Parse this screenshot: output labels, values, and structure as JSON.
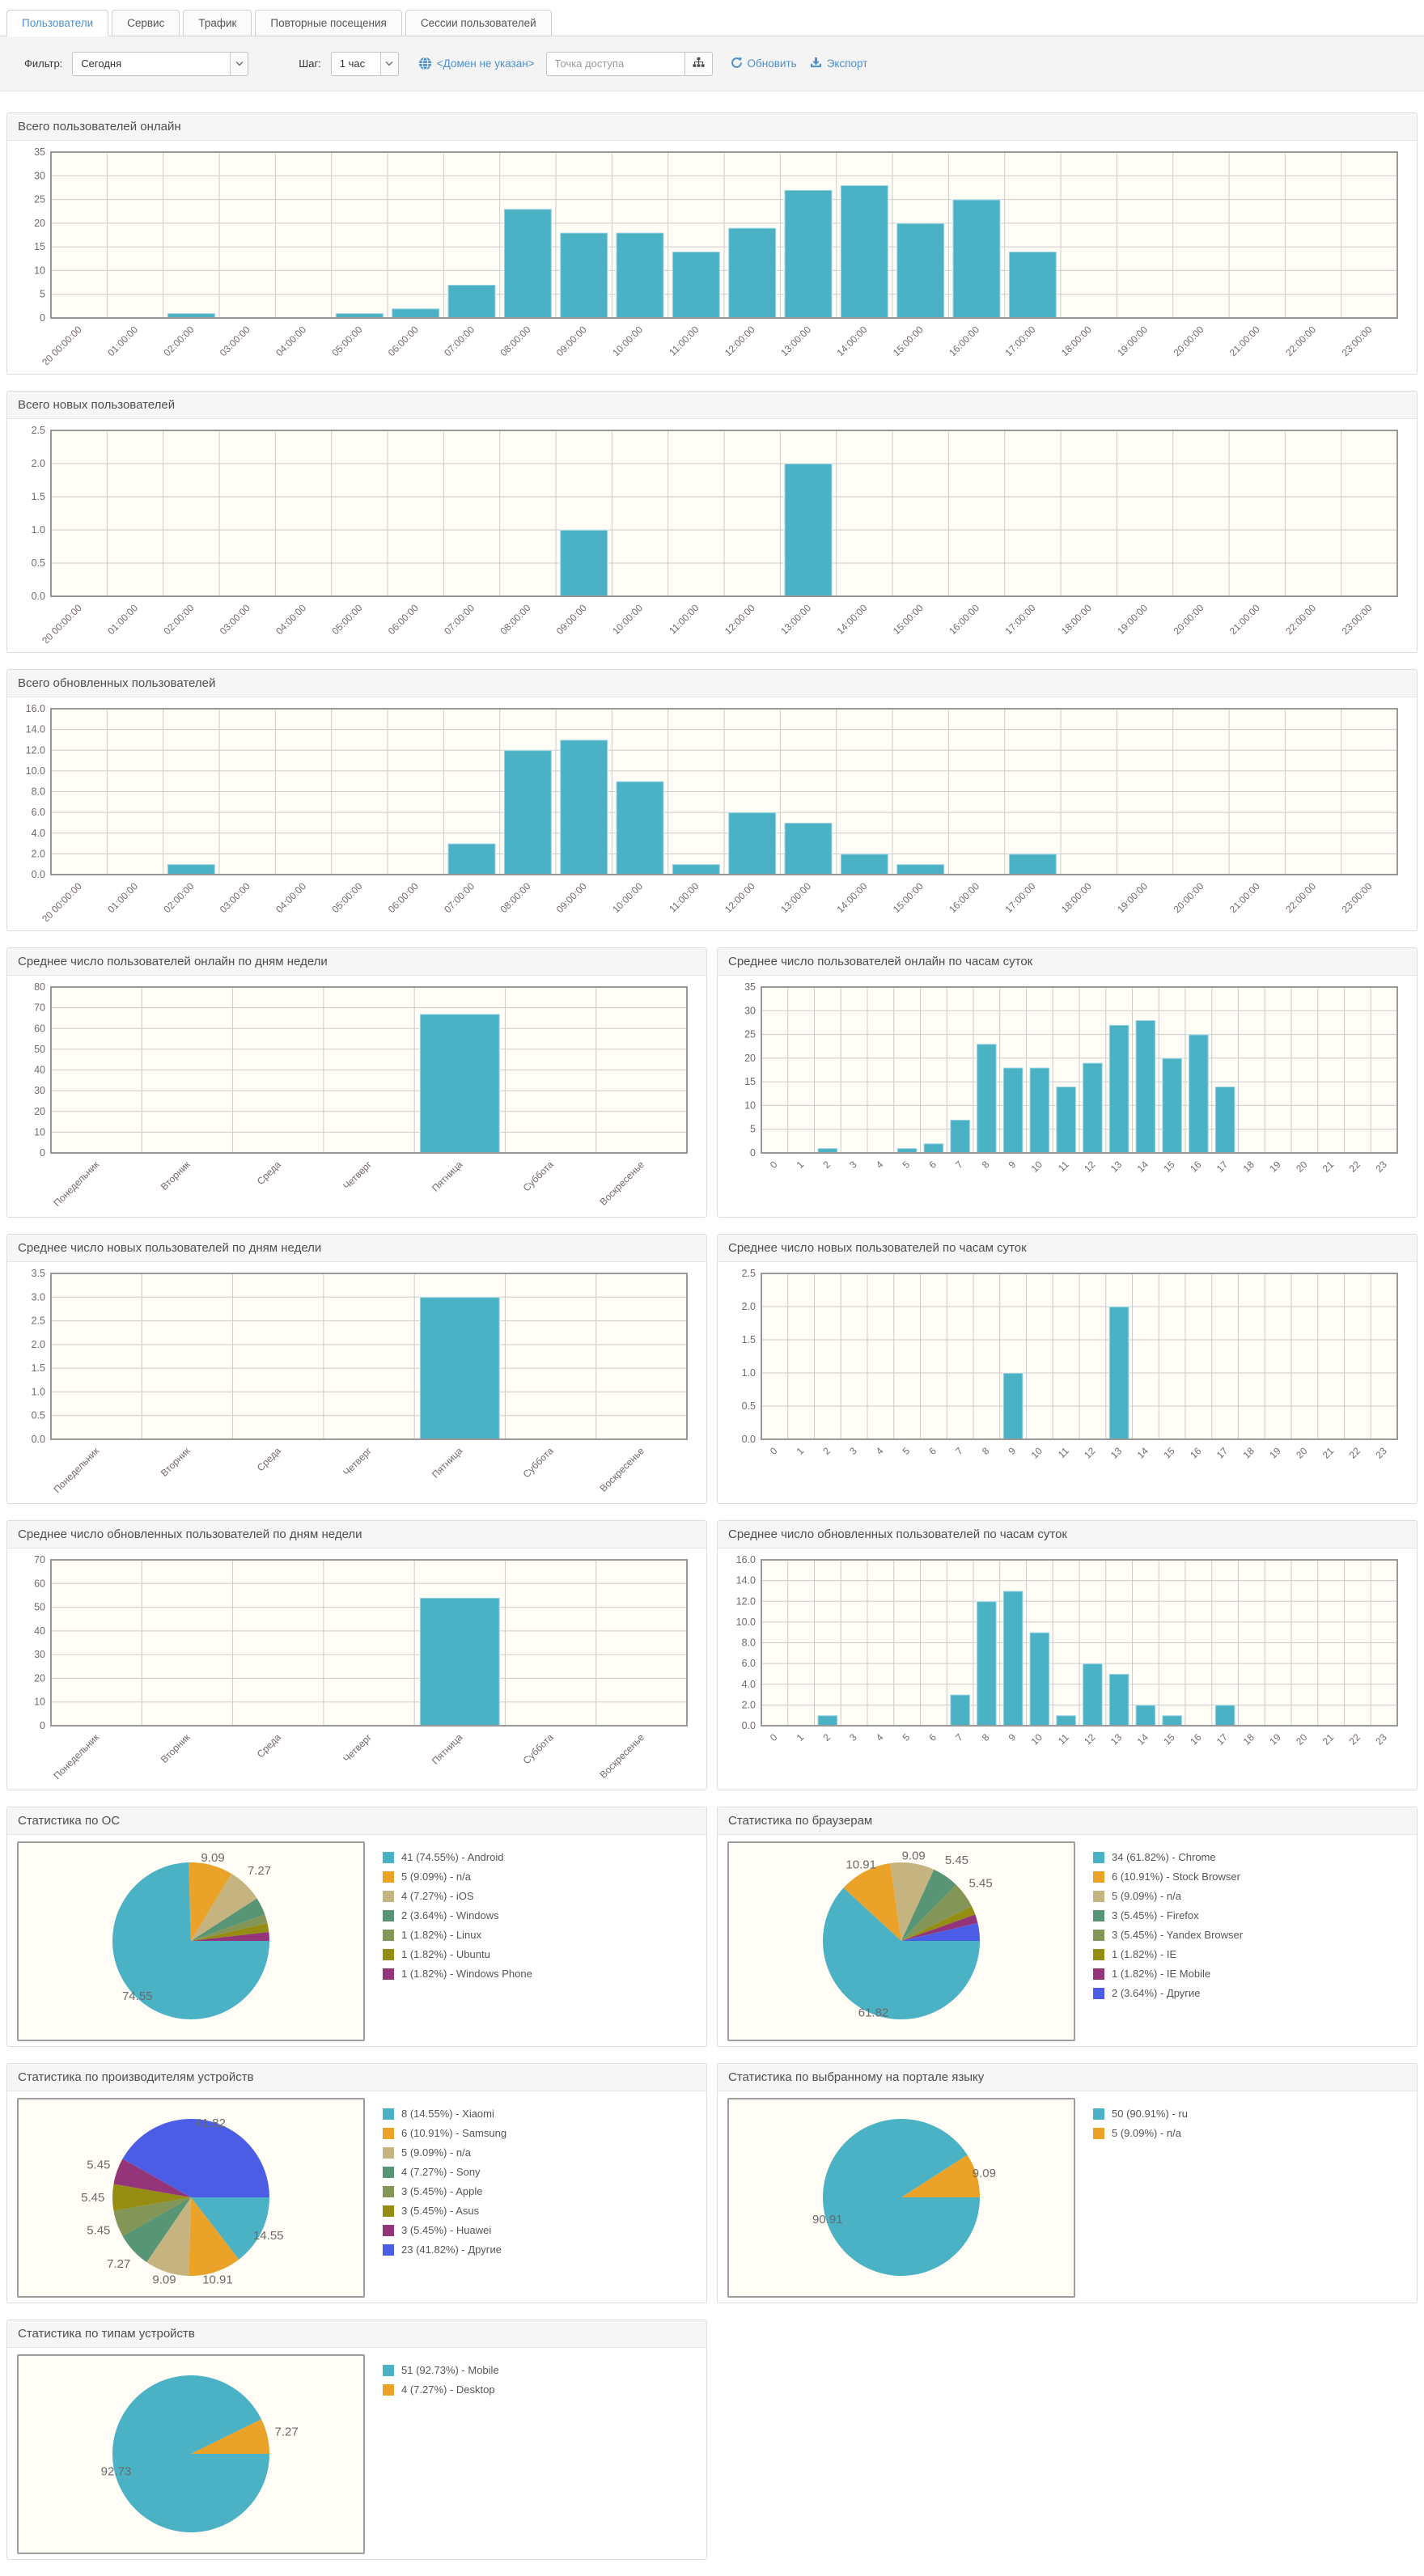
{
  "tabs": [
    {
      "name": "tab-users",
      "label": "Пользователи",
      "active": true
    },
    {
      "name": "tab-service",
      "label": "Сервис",
      "active": false
    },
    {
      "name": "tab-traffic",
      "label": "Трафик",
      "active": false
    },
    {
      "name": "tab-repeat-visits",
      "label": "Повторные посещения",
      "active": false
    },
    {
      "name": "tab-user-sessions",
      "label": "Сессии пользователей",
      "active": false
    }
  ],
  "toolbar": {
    "filter_label": "Фильтр:",
    "filter_value": "Сегодня",
    "step_label": "Шаг:",
    "step_value": "1 час",
    "domain_link": "<Домен не указан>",
    "access_point_placeholder": "Точка доступа",
    "refresh_label": "Обновить",
    "export_label": "Экспорт"
  },
  "colors": {
    "accent_link": "#4d90cd",
    "series_bar": "#4bb2c5",
    "bar_edge": "rgba(255,255,255,0.45)",
    "plot_background": "#fffdf6",
    "grid_line": "#cccccc",
    "grid_border": "#999999",
    "tick_text": "#756868",
    "pie_label_text": "#6a6a6a",
    "pie_palette": [
      "#4bb2c5",
      "#eaa228",
      "#c5b47f",
      "#579575",
      "#839557",
      "#958c12",
      "#953579",
      "#4b5de4"
    ]
  },
  "axis_labels": {
    "datetime": [
      "-10-20 00:00:00",
      "01:00:00",
      "02:00:00",
      "03:00:00",
      "04:00:00",
      "05:00:00",
      "06:00:00",
      "07:00:00",
      "08:00:00",
      "09:00:00",
      "10:00:00",
      "11:00:00",
      "12:00:00",
      "13:00:00",
      "14:00:00",
      "15:00:00",
      "16:00:00",
      "17:00:00",
      "18:00:00",
      "19:00:00",
      "20:00:00",
      "21:00:00",
      "22:00:00",
      "23:00:00"
    ],
    "hours": [
      "0",
      "1",
      "2",
      "3",
      "4",
      "5",
      "6",
      "7",
      "8",
      "9",
      "10",
      "11",
      "12",
      "13",
      "14",
      "15",
      "16",
      "17",
      "18",
      "19",
      "20",
      "21",
      "22",
      "23"
    ],
    "weekdays": [
      "Понедельник",
      "Вторник",
      "Среда",
      "Четверг",
      "Пятница",
      "Суббота",
      "Воскресенье"
    ]
  },
  "chart_data": [
    {
      "id": "total-online",
      "type": "bar",
      "layout": "full",
      "title": "Всего пользователей онлайн",
      "x_axis": "datetime",
      "ylim": [
        0,
        35
      ],
      "ystep": 5,
      "ydecimals": 0,
      "grid": true,
      "legend": "none",
      "values": [
        0,
        0,
        1,
        0,
        0,
        1,
        2,
        7,
        23,
        18,
        18,
        14,
        19,
        27,
        28,
        20,
        25,
        14,
        0,
        0,
        0,
        0,
        0,
        0
      ]
    },
    {
      "id": "total-new",
      "type": "bar",
      "layout": "full",
      "title": "Всего новых пользователей",
      "x_axis": "datetime",
      "ylim": [
        0,
        2.5
      ],
      "ystep": 0.5,
      "ydecimals": 1,
      "grid": true,
      "legend": "none",
      "values": [
        0,
        0,
        0,
        0,
        0,
        0,
        0,
        0,
        0,
        1,
        0,
        0,
        0,
        2,
        0,
        0,
        0,
        0,
        0,
        0,
        0,
        0,
        0,
        0
      ]
    },
    {
      "id": "total-updated",
      "type": "bar",
      "layout": "full",
      "title": "Всего обновленных пользователей",
      "x_axis": "datetime",
      "ylim": [
        0,
        16
      ],
      "ystep": 2,
      "ydecimals": 1,
      "grid": true,
      "legend": "none",
      "values": [
        0,
        0,
        1,
        0,
        0,
        0,
        0,
        3,
        12,
        13,
        9,
        1,
        6,
        5,
        2,
        1,
        0,
        2,
        0,
        0,
        0,
        0,
        0,
        0
      ]
    },
    {
      "id": "avg-online-weekday",
      "type": "bar",
      "layout": "half",
      "title": "Среднее число пользователей онлайн по дням недели",
      "x_axis": "weekdays",
      "ylim": [
        0,
        80
      ],
      "ystep": 10,
      "ydecimals": 0,
      "grid": true,
      "legend": "none",
      "values": [
        0,
        0,
        0,
        0,
        67,
        0,
        0
      ]
    },
    {
      "id": "avg-online-hour",
      "type": "bar",
      "layout": "half",
      "title": "Среднее число пользователей онлайн по часам суток",
      "x_axis": "hours",
      "ylim": [
        0,
        35
      ],
      "ystep": 5,
      "ydecimals": 0,
      "grid": true,
      "legend": "none",
      "values": [
        0,
        0,
        1,
        0,
        0,
        1,
        2,
        7,
        23,
        18,
        18,
        14,
        19,
        27,
        28,
        20,
        25,
        14,
        0,
        0,
        0,
        0,
        0,
        0
      ]
    },
    {
      "id": "avg-new-weekday",
      "type": "bar",
      "layout": "half",
      "title": "Среднее число новых пользователей по дням недели",
      "x_axis": "weekdays",
      "ylim": [
        0,
        3.5
      ],
      "ystep": 0.5,
      "ydecimals": 1,
      "grid": true,
      "legend": "none",
      "values": [
        0,
        0,
        0,
        0,
        3,
        0,
        0
      ]
    },
    {
      "id": "avg-new-hour",
      "type": "bar",
      "layout": "half",
      "title": "Среднее число новых пользователей по часам суток",
      "x_axis": "hours",
      "ylim": [
        0,
        2.5
      ],
      "ystep": 0.5,
      "ydecimals": 1,
      "grid": true,
      "legend": "none",
      "values": [
        0,
        0,
        0,
        0,
        0,
        0,
        0,
        0,
        0,
        1,
        0,
        0,
        0,
        2,
        0,
        0,
        0,
        0,
        0,
        0,
        0,
        0,
        0,
        0
      ]
    },
    {
      "id": "avg-updated-weekday",
      "type": "bar",
      "layout": "half",
      "title": "Среднее число обновленных пользователей по дням недели",
      "x_axis": "weekdays",
      "ylim": [
        0,
        70
      ],
      "ystep": 10,
      "ydecimals": 0,
      "grid": true,
      "legend": "none",
      "values": [
        0,
        0,
        0,
        0,
        54,
        0,
        0
      ]
    },
    {
      "id": "avg-updated-hour",
      "type": "bar",
      "layout": "half",
      "title": "Среднее число обновленных пользователей по часам суток",
      "x_axis": "hours",
      "ylim": [
        0,
        16
      ],
      "ystep": 2,
      "ydecimals": 1,
      "grid": true,
      "legend": "none",
      "values": [
        0,
        0,
        1,
        0,
        0,
        0,
        0,
        3,
        12,
        13,
        9,
        1,
        6,
        5,
        2,
        1,
        0,
        2,
        0,
        0,
        0,
        0,
        0,
        0
      ]
    },
    {
      "id": "os-stats",
      "type": "pie",
      "layout": "half",
      "title": "Статистика по ОС",
      "legend": "right",
      "slices": [
        {
          "value": 41,
          "pct": 74.55,
          "slice_label": "74.55",
          "legend_label": "41 (74.55%) - Android"
        },
        {
          "value": 5,
          "pct": 9.09,
          "slice_label": "9.09",
          "legend_label": "5 (9.09%) - n/a"
        },
        {
          "value": 4,
          "pct": 7.27,
          "slice_label": "7.27",
          "legend_label": "4 (7.27%) - iOS"
        },
        {
          "value": 2,
          "pct": 3.64,
          "legend_label": "2 (3.64%) - Windows"
        },
        {
          "value": 1,
          "pct": 1.82,
          "legend_label": "1 (1.82%) - Linux"
        },
        {
          "value": 1,
          "pct": 1.82,
          "legend_label": "1 (1.82%) - Ubuntu"
        },
        {
          "value": 1,
          "pct": 1.82,
          "legend_label": "1 (1.82%) - Windows Phone"
        }
      ]
    },
    {
      "id": "browser-stats",
      "type": "pie",
      "layout": "half",
      "title": "Статистика по браузерам",
      "legend": "right",
      "slices": [
        {
          "value": 34,
          "pct": 61.82,
          "slice_label": "61.82",
          "legend_label": "34 (61.82%) - Chrome"
        },
        {
          "value": 6,
          "pct": 10.91,
          "slice_label": "10.91",
          "legend_label": "6 (10.91%) - Stock Browser"
        },
        {
          "value": 5,
          "pct": 9.09,
          "slice_label": "9.09",
          "legend_label": "5 (9.09%) - n/a"
        },
        {
          "value": 3,
          "pct": 5.45,
          "slice_label": "5.45",
          "legend_label": "3 (5.45%) - Firefox"
        },
        {
          "value": 3,
          "pct": 5.45,
          "slice_label": "5.45",
          "legend_label": "3 (5.45%) - Yandex Browser"
        },
        {
          "value": 1,
          "pct": 1.82,
          "legend_label": "1 (1.82%) - IE"
        },
        {
          "value": 1,
          "pct": 1.82,
          "legend_label": "1 (1.82%) - IE Mobile"
        },
        {
          "value": 2,
          "pct": 3.64,
          "legend_label": "2 (3.64%) - Другие"
        }
      ]
    },
    {
      "id": "device-vendor-stats",
      "type": "pie",
      "layout": "half",
      "title": "Статистика по производителям устройств",
      "legend": "right",
      "slices": [
        {
          "value": 8,
          "pct": 14.55,
          "slice_label": "14.55",
          "legend_label": "8 (14.55%) - Xiaomi"
        },
        {
          "value": 6,
          "pct": 10.91,
          "slice_label": "10.91",
          "legend_label": "6 (10.91%) - Samsung"
        },
        {
          "value": 5,
          "pct": 9.09,
          "slice_label": "9.09",
          "legend_label": "5 (9.09%) - n/a"
        },
        {
          "value": 4,
          "pct": 7.27,
          "slice_label": "7.27",
          "legend_label": "4 (7.27%) - Sony"
        },
        {
          "value": 3,
          "pct": 5.45,
          "slice_label": "5.45",
          "legend_label": "3 (5.45%) - Apple"
        },
        {
          "value": 3,
          "pct": 5.45,
          "slice_label": "5.45",
          "legend_label": "3 (5.45%) - Asus"
        },
        {
          "value": 3,
          "pct": 5.45,
          "slice_label": "5.45",
          "legend_label": "3 (5.45%) - Huawei"
        },
        {
          "value": 23,
          "pct": 41.82,
          "slice_label": "41.82",
          "legend_label": "23 (41.82%) - Другие"
        }
      ]
    },
    {
      "id": "portal-language-stats",
      "type": "pie",
      "layout": "half",
      "title": "Статистика по выбранному на портале языку",
      "legend": "right",
      "slices": [
        {
          "value": 50,
          "pct": 90.91,
          "slice_label": "90.91",
          "legend_label": "50 (90.91%) - ru"
        },
        {
          "value": 5,
          "pct": 9.09,
          "slice_label": "9.09",
          "legend_label": "5 (9.09%) - n/a"
        }
      ]
    },
    {
      "id": "device-type-stats",
      "type": "pie",
      "layout": "half",
      "title": "Статистика по типам устройств",
      "legend": "right",
      "slices": [
        {
          "value": 51,
          "pct": 92.73,
          "slice_label": "92.73",
          "legend_label": "51 (92.73%) - Mobile"
        },
        {
          "value": 4,
          "pct": 7.27,
          "slice_label": "7.27",
          "legend_label": "4 (7.27%) - Desktop"
        }
      ]
    }
  ]
}
